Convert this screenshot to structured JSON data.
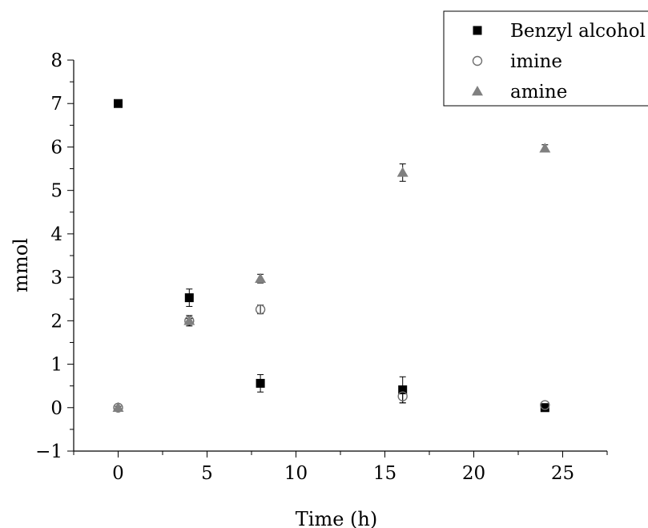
{
  "chart_data": {
    "type": "scatter",
    "title": "",
    "xlabel": "Time (h)",
    "ylabel": "mmol",
    "xlim": [
      -2.5,
      27.5
    ],
    "ylim": [
      -1,
      8
    ],
    "xticks": [
      "0",
      "5",
      "10",
      "15",
      "20",
      "25"
    ],
    "yticks": [
      "-1",
      "0",
      "1",
      "2",
      "3",
      "4",
      "5",
      "6",
      "7",
      "8"
    ],
    "legend_position": "top-right",
    "grid": false,
    "series": [
      {
        "name": "Benzyl alcohol",
        "marker": "square",
        "color": "#000000",
        "points": [
          {
            "x": 0,
            "y": 7.0,
            "err": 0.05
          },
          {
            "x": 4,
            "y": 2.53,
            "err": 0.2
          },
          {
            "x": 8,
            "y": 0.56,
            "err": 0.2
          },
          {
            "x": 16,
            "y": 0.41,
            "err": 0.3
          },
          {
            "x": 24,
            "y": 0.0,
            "err": 0.03
          }
        ]
      },
      {
        "name": "imine",
        "marker": "circle-open",
        "color": "#6f6f6f",
        "points": [
          {
            "x": 0,
            "y": 0.0,
            "err": 0.03
          },
          {
            "x": 4,
            "y": 2.0,
            "err": 0.05
          },
          {
            "x": 8,
            "y": 2.26,
            "err": 0.1
          },
          {
            "x": 16,
            "y": 0.26,
            "err": 0.15
          },
          {
            "x": 24,
            "y": 0.06,
            "err": 0.03
          }
        ]
      },
      {
        "name": "amine",
        "marker": "triangle",
        "color": "#808080",
        "points": [
          {
            "x": 0,
            "y": 0.0,
            "err": 0.03
          },
          {
            "x": 4,
            "y": 2.0,
            "err": 0.12
          },
          {
            "x": 8,
            "y": 2.97,
            "err": 0.1
          },
          {
            "x": 16,
            "y": 5.41,
            "err": 0.2
          },
          {
            "x": 24,
            "y": 5.97,
            "err": 0.08
          }
        ]
      }
    ]
  }
}
